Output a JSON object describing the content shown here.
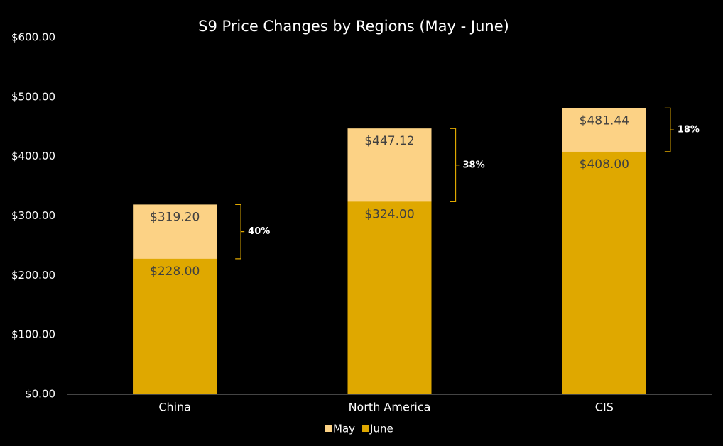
{
  "chart_data": {
    "type": "bar",
    "title": "S9 Price Changes by Regions (May - June)",
    "categories": [
      "China",
      "North America",
      "CIS"
    ],
    "series": [
      {
        "name": "May",
        "color": "#fcd285",
        "values": [
          319.2,
          447.12,
          481.44
        ],
        "value_labels": [
          "$319.20",
          "$447.12",
          "$481.44"
        ]
      },
      {
        "name": "June",
        "color": "#dfa800",
        "values": [
          228,
          324,
          408
        ],
        "value_labels": [
          "$228.00",
          "$324.00",
          "$408.00"
        ]
      }
    ],
    "annotations": [
      "40%",
      "38%",
      "18%"
    ],
    "ylim": [
      0,
      600
    ],
    "yticks": [
      {
        "value": 0,
        "label": "$0.00"
      },
      {
        "value": 100,
        "label": "$100.00"
      },
      {
        "value": 200,
        "label": "$200.00"
      },
      {
        "value": 300,
        "label": "$300.00"
      },
      {
        "value": 400,
        "label": "$400.00"
      },
      {
        "value": 500,
        "label": "$500.00"
      },
      {
        "value": 600,
        "label": "$600.00"
      }
    ],
    "grid": false,
    "legend": "bottom"
  }
}
